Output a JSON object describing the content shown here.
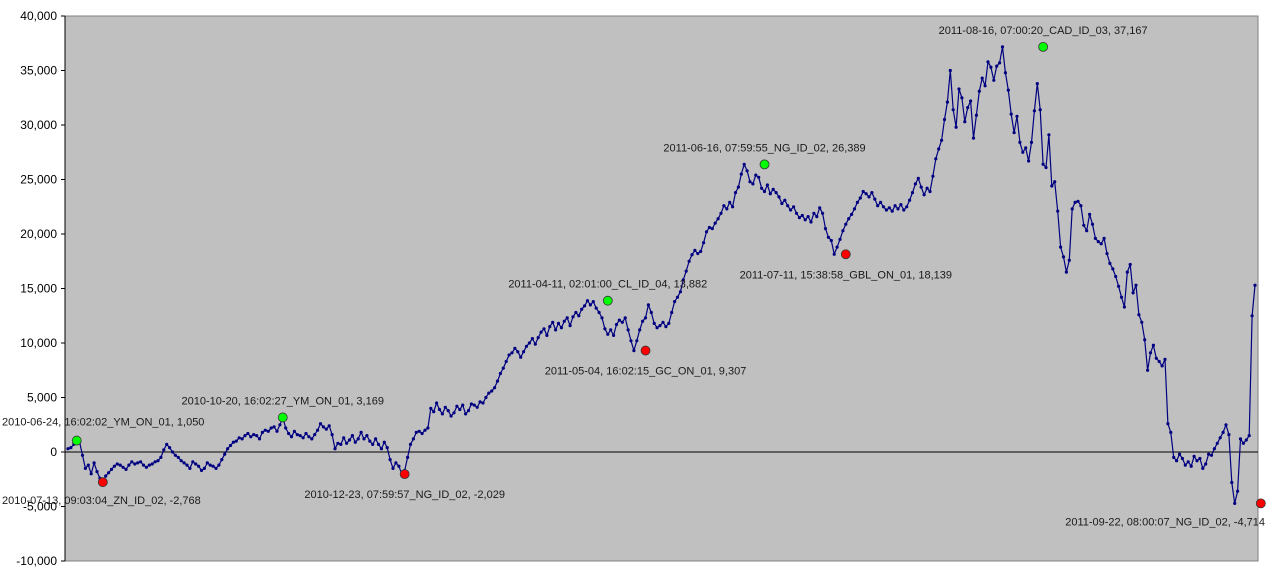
{
  "chart_data": {
    "type": "line",
    "title": "",
    "xlabel": "",
    "ylabel": "",
    "ylim": [
      -10000,
      40000
    ],
    "y_ticks": [
      {
        "value": 40000,
        "label": "40,000"
      },
      {
        "value": 35000,
        "label": "35,000"
      },
      {
        "value": 30000,
        "label": "30,000"
      },
      {
        "value": 25000,
        "label": "25,000"
      },
      {
        "value": 20000,
        "label": "20,000"
      },
      {
        "value": 15000,
        "label": "15,000"
      },
      {
        "value": 10000,
        "label": "10,000"
      },
      {
        "value": 5000,
        "label": "5,000"
      },
      {
        "value": 0,
        "label": "0"
      },
      {
        "value": -5000,
        "label": "-5,000"
      },
      {
        "value": -10000,
        "label": "-10,000"
      }
    ],
    "plot_background": "#c0c0c0",
    "line_color": "#000080",
    "grid": false,
    "legend": "none",
    "series": [
      {
        "values": [
          300,
          400,
          700,
          1050,
          900,
          -300,
          -1500,
          -1200,
          -2000,
          -1000,
          -1800,
          -2400,
          -2768,
          -2200,
          -1900,
          -1600,
          -1300,
          -1100,
          -1200,
          -1400,
          -1600,
          -1200,
          -900,
          -1100,
          -1000,
          -900,
          -1200,
          -1400,
          -1200,
          -1100,
          -900,
          -800,
          -500,
          200,
          700,
          400,
          0,
          -300,
          -500,
          -800,
          -1000,
          -1200,
          -1500,
          -900,
          -1100,
          -1300,
          -1700,
          -1500,
          -1000,
          -1200,
          -1300,
          -1500,
          -1200,
          -700,
          -200,
          300,
          600,
          900,
          1000,
          1300,
          1200,
          1500,
          1700,
          1400,
          1600,
          1500,
          1200,
          1800,
          2000,
          1900,
          2200,
          2300,
          1900,
          2500,
          3169,
          2200,
          1700,
          1400,
          1900,
          1600,
          1500,
          1300,
          1700,
          1400,
          1200,
          1600,
          2000,
          2600,
          2300,
          2100,
          2400,
          1600,
          300,
          800,
          700,
          1300,
          800,
          1100,
          1500,
          900,
          1200,
          1800,
          1200,
          1500,
          1000,
          700,
          1200,
          700,
          300,
          900,
          400,
          -700,
          -1500,
          -1000,
          -1300,
          -2029,
          -1700,
          -500,
          700,
          1200,
          1800,
          1900,
          1700,
          2000,
          2200,
          4000,
          3700,
          4500,
          3900,
          3500,
          4100,
          3800,
          3300,
          3600,
          4200,
          3900,
          4300,
          3500,
          3800,
          4400,
          4300,
          4100,
          4600,
          4500,
          5000,
          5400,
          5600,
          5900,
          6500,
          7200,
          7700,
          8300,
          8900,
          9100,
          9500,
          9200,
          8700,
          9200,
          9700,
          10000,
          10400,
          9900,
          10500,
          11000,
          11300,
          10700,
          11500,
          11900,
          11200,
          11800,
          11400,
          12000,
          12300,
          11600,
          12400,
          12800,
          12500,
          13100,
          13400,
          13882,
          13500,
          13800,
          13200,
          12800,
          12300,
          11300,
          10800,
          11200,
          10700,
          11700,
          12100,
          11900,
          12300,
          11200,
          10200,
          9307,
          10200,
          11200,
          12000,
          12300,
          13500,
          12800,
          11800,
          11400,
          11600,
          11900,
          11500,
          11800,
          12800,
          13800,
          14200,
          14700,
          15800,
          16600,
          17500,
          18100,
          18500,
          18200,
          18400,
          19200,
          20200,
          20600,
          20500,
          21000,
          21400,
          21900,
          22600,
          22300,
          22900,
          22500,
          23800,
          24300,
          25500,
          26389,
          25800,
          24800,
          24600,
          25400,
          25200,
          24200,
          23900,
          24500,
          23700,
          24100,
          23800,
          23400,
          22800,
          23100,
          22600,
          22200,
          22500,
          21900,
          21500,
          21700,
          21300,
          21600,
          21100,
          21900,
          21600,
          22400,
          21900,
          20500,
          19700,
          19400,
          18139,
          18800,
          19500,
          20300,
          20900,
          21400,
          21800,
          22300,
          22900,
          23300,
          23900,
          23700,
          23400,
          23800,
          23200,
          22600,
          22900,
          22500,
          22200,
          22400,
          22100,
          22600,
          22300,
          22700,
          22200,
          22500,
          23100,
          23800,
          24600,
          25100,
          24300,
          23600,
          24200,
          23900,
          25300,
          26900,
          27800,
          28600,
          30500,
          32100,
          35000,
          31400,
          29800,
          33300,
          32500,
          30300,
          31600,
          32200,
          28800,
          30900,
          33100,
          34300,
          33600,
          35800,
          35300,
          34100,
          35400,
          35700,
          37167,
          34800,
          33200,
          31000,
          29300,
          30800,
          28400,
          27500,
          27900,
          26700,
          28400,
          31300,
          33800,
          31400,
          26400,
          26100,
          29100,
          24400,
          24800,
          22100,
          18800,
          17900,
          16500,
          17600,
          22300,
          22900,
          23000,
          22600,
          20800,
          20300,
          21800,
          20900,
          19600,
          19300,
          19100,
          19600,
          18200,
          17300,
          16800,
          16100,
          15200,
          14200,
          13300,
          16500,
          17200,
          14600,
          15300,
          12600,
          11900,
          10300,
          7500,
          9100,
          9800,
          8600,
          8300,
          7900,
          8500,
          2600,
          1800,
          -500,
          -800,
          -200,
          -600,
          -1200,
          -900,
          -1300,
          -400,
          -800,
          -600,
          -1500,
          -1100,
          -200,
          -300,
          300,
          800,
          1300,
          1800,
          2500,
          1600,
          -2800,
          -4714,
          -3600,
          1200,
          800,
          1100,
          1500,
          12500,
          15300
        ]
      }
    ],
    "annotations": [
      {
        "type": "max",
        "label": "2010-06-24, 16:02:02_YM_ON_01, 1,050",
        "value": 1050,
        "index": 3,
        "label_pos": "above-left",
        "color": "#00ff00"
      },
      {
        "type": "min",
        "label": "2010-07-13, 09:03:04_ZN_ID_02, -2,768",
        "value": -2768,
        "index": 12,
        "label_pos": "below-left",
        "color": "#ff0000"
      },
      {
        "type": "max",
        "label": "2010-10-20, 16:02:27_YM_ON_01, 3,169",
        "value": 3169,
        "index": 74,
        "label_pos": "above",
        "color": "#00ff00"
      },
      {
        "type": "min",
        "label": "2010-12-23, 07:59:57_NG_ID_02, -2,029",
        "value": -2029,
        "index": 116,
        "label_pos": "below",
        "color": "#ff0000"
      },
      {
        "type": "max",
        "label": "2011-04-11, 02:01:00_CL_ID_04, 13,882",
        "value": 13882,
        "index": 186,
        "label_pos": "above",
        "color": "#00ff00"
      },
      {
        "type": "min",
        "label": "2011-05-04, 16:02:15_GC_ON_01, 9,307",
        "value": 9307,
        "index": 199,
        "label_pos": "below",
        "color": "#ff0000"
      },
      {
        "type": "max",
        "label": "2011-06-16, 07:59:55_NG_ID_02, 26,389",
        "value": 26389,
        "index": 240,
        "label_pos": "above",
        "color": "#00ff00"
      },
      {
        "type": "min",
        "label": "2011-07-11, 15:38:58_GBL_ON_01, 18,139",
        "value": 18139,
        "index": 268,
        "label_pos": "below",
        "color": "#ff0000"
      },
      {
        "type": "max",
        "label": "2011-08-16, 07:00:20_CAD_ID_03, 37,167",
        "value": 37167,
        "index": 336,
        "label_pos": "above",
        "color": "#00ff00"
      },
      {
        "type": "min",
        "label": "2011-09-22, 08:00:07_NG_ID_02, -4,714",
        "value": -4714,
        "index": 411,
        "label_pos": "below-right",
        "color": "#ff0000"
      }
    ]
  }
}
